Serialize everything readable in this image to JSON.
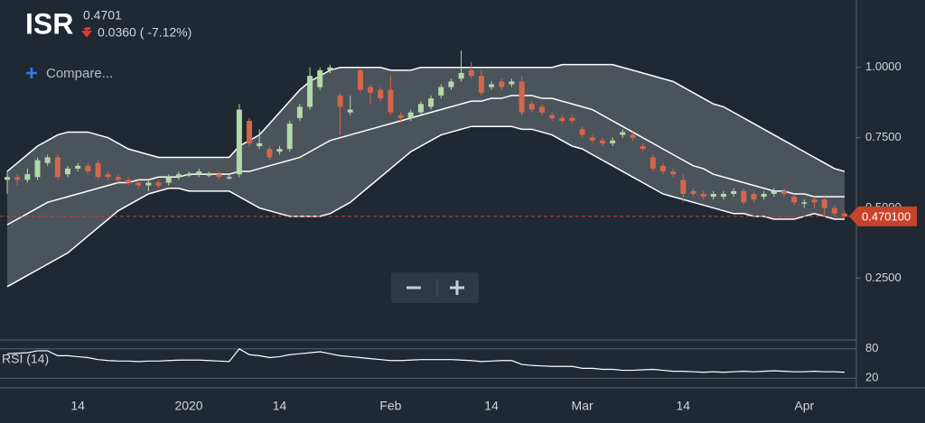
{
  "header": {
    "symbol": "ISR",
    "price": "0.4701",
    "change": "0.0360 ( -7.12%)",
    "compare": "Compare..."
  },
  "chart_data": [
    {
      "type": "candlestick",
      "categories": [
        null,
        null,
        null,
        null,
        null,
        null,
        null,
        "14",
        null,
        null,
        null,
        null,
        null,
        null,
        null,
        null,
        null,
        null,
        "2020",
        null,
        null,
        null,
        null,
        null,
        null,
        null,
        null,
        "14",
        null,
        null,
        null,
        null,
        null,
        null,
        null,
        null,
        null,
        null,
        "Feb",
        null,
        null,
        null,
        null,
        null,
        null,
        null,
        null,
        null,
        "14",
        null,
        null,
        null,
        null,
        null,
        null,
        null,
        null,
        "Mar",
        null,
        null,
        null,
        null,
        null,
        null,
        null,
        null,
        null,
        "14",
        null,
        null,
        null,
        null,
        null,
        null,
        null,
        null,
        null,
        null,
        null,
        "Apr",
        null,
        null,
        null,
        null
      ],
      "open": [
        0.6,
        0.61,
        0.6,
        0.61,
        0.66,
        0.68,
        0.62,
        0.64,
        0.65,
        0.66,
        0.62,
        0.61,
        0.6,
        0.59,
        0.58,
        0.59,
        0.59,
        0.61,
        0.62,
        0.62,
        0.62,
        0.62,
        0.61,
        0.62,
        0.81,
        0.72,
        0.71,
        0.7,
        0.71,
        0.82,
        0.86,
        0.93,
        0.99,
        0.9,
        0.84,
        0.99,
        0.93,
        0.92,
        0.92,
        0.83,
        0.82,
        0.84,
        0.86,
        0.9,
        0.93,
        0.96,
        0.99,
        0.97,
        0.93,
        0.95,
        0.94,
        0.95,
        0.87,
        0.86,
        0.83,
        0.82,
        0.82,
        0.78,
        0.75,
        0.74,
        0.73,
        0.76,
        0.76,
        0.72,
        0.68,
        0.65,
        0.63,
        0.6,
        0.56,
        0.55,
        0.54,
        0.54,
        0.55,
        0.56,
        0.55,
        0.54,
        0.55,
        0.56,
        0.54,
        0.52,
        0.53,
        0.53,
        0.5,
        0.48
      ],
      "high": [
        0.63,
        0.62,
        0.64,
        0.68,
        0.69,
        0.69,
        0.65,
        0.66,
        0.66,
        0.67,
        0.63,
        0.62,
        0.61,
        0.6,
        0.6,
        0.6,
        0.62,
        0.63,
        0.63,
        0.64,
        0.63,
        0.63,
        0.62,
        0.87,
        0.82,
        0.78,
        0.72,
        0.72,
        0.81,
        0.87,
        1.0,
        1.0,
        1.01,
        0.91,
        0.9,
        1.0,
        0.94,
        0.93,
        0.97,
        0.84,
        0.85,
        0.88,
        0.9,
        0.94,
        0.96,
        1.06,
        1.02,
        0.99,
        0.95,
        0.96,
        0.96,
        0.97,
        0.88,
        0.87,
        0.84,
        0.83,
        0.83,
        0.79,
        0.76,
        0.75,
        0.75,
        0.78,
        0.77,
        0.73,
        0.69,
        0.66,
        0.64,
        0.62,
        0.57,
        0.56,
        0.56,
        0.56,
        0.57,
        0.57,
        0.56,
        0.56,
        0.57,
        0.57,
        0.55,
        0.53,
        0.54,
        0.54,
        0.51,
        0.49
      ],
      "low": [
        0.55,
        0.58,
        0.59,
        0.6,
        0.65,
        0.6,
        0.61,
        0.63,
        0.62,
        0.6,
        0.6,
        0.59,
        0.58,
        0.57,
        0.56,
        0.57,
        0.58,
        0.6,
        0.61,
        0.61,
        0.61,
        0.6,
        0.6,
        0.61,
        0.72,
        0.71,
        0.67,
        0.69,
        0.7,
        0.81,
        0.85,
        0.92,
        0.98,
        0.76,
        0.83,
        0.91,
        0.87,
        0.88,
        0.83,
        0.81,
        0.81,
        0.83,
        0.85,
        0.89,
        0.92,
        0.95,
        0.96,
        0.9,
        0.92,
        0.92,
        0.93,
        0.83,
        0.84,
        0.83,
        0.81,
        0.8,
        0.8,
        0.75,
        0.73,
        0.72,
        0.72,
        0.75,
        0.74,
        0.7,
        0.63,
        0.62,
        0.61,
        0.52,
        0.54,
        0.53,
        0.53,
        0.53,
        0.54,
        0.51,
        0.52,
        0.53,
        0.54,
        0.54,
        0.51,
        0.5,
        0.5,
        0.47,
        0.47,
        0.46
      ],
      "close": [
        0.61,
        0.6,
        0.62,
        0.67,
        0.68,
        0.61,
        0.64,
        0.65,
        0.63,
        0.61,
        0.61,
        0.6,
        0.59,
        0.58,
        0.59,
        0.58,
        0.61,
        0.62,
        0.62,
        0.63,
        0.62,
        0.61,
        0.61,
        0.85,
        0.73,
        0.73,
        0.68,
        0.71,
        0.8,
        0.86,
        0.97,
        0.99,
        1.0,
        0.86,
        0.85,
        0.92,
        0.91,
        0.89,
        0.84,
        0.82,
        0.84,
        0.87,
        0.89,
        0.93,
        0.95,
        0.98,
        0.97,
        0.91,
        0.94,
        0.93,
        0.95,
        0.84,
        0.85,
        0.84,
        0.82,
        0.81,
        0.81,
        0.76,
        0.74,
        0.73,
        0.74,
        0.77,
        0.75,
        0.71,
        0.64,
        0.63,
        0.62,
        0.55,
        0.55,
        0.54,
        0.55,
        0.55,
        0.56,
        0.52,
        0.53,
        0.55,
        0.56,
        0.55,
        0.52,
        0.52,
        0.52,
        0.5,
        0.48,
        0.47
      ],
      "up_color": "#b3d9a9",
      "down_color": "#d4664c",
      "bands": {
        "upper": [
          0.63,
          0.66,
          0.69,
          0.72,
          0.74,
          0.76,
          0.77,
          0.77,
          0.77,
          0.76,
          0.75,
          0.73,
          0.71,
          0.7,
          0.69,
          0.68,
          0.68,
          0.68,
          0.68,
          0.68,
          0.68,
          0.68,
          0.68,
          0.72,
          0.74,
          0.76,
          0.8,
          0.84,
          0.88,
          0.92,
          0.95,
          0.97,
          0.99,
          1.0,
          1.0,
          1.0,
          1.0,
          1.0,
          0.99,
          0.99,
          0.99,
          1.0,
          1.0,
          1.0,
          1.0,
          1.0,
          1.0,
          1.0,
          1.0,
          1.0,
          1.0,
          1.0,
          1.0,
          1.0,
          1.0,
          1.01,
          1.01,
          1.01,
          1.01,
          1.01,
          1.01,
          1.0,
          0.99,
          0.98,
          0.97,
          0.96,
          0.95,
          0.93,
          0.91,
          0.89,
          0.87,
          0.86,
          0.84,
          0.82,
          0.8,
          0.78,
          0.76,
          0.74,
          0.72,
          0.7,
          0.68,
          0.66,
          0.64,
          0.63
        ],
        "middle": [
          0.44,
          0.46,
          0.48,
          0.5,
          0.52,
          0.53,
          0.54,
          0.55,
          0.56,
          0.57,
          0.58,
          0.59,
          0.59,
          0.6,
          0.6,
          0.61,
          0.61,
          0.61,
          0.62,
          0.62,
          0.62,
          0.62,
          0.62,
          0.63,
          0.63,
          0.64,
          0.65,
          0.66,
          0.67,
          0.68,
          0.7,
          0.72,
          0.74,
          0.75,
          0.76,
          0.77,
          0.78,
          0.79,
          0.8,
          0.81,
          0.82,
          0.83,
          0.84,
          0.85,
          0.86,
          0.87,
          0.88,
          0.88,
          0.89,
          0.89,
          0.9,
          0.9,
          0.9,
          0.89,
          0.89,
          0.88,
          0.87,
          0.86,
          0.85,
          0.83,
          0.81,
          0.79,
          0.77,
          0.75,
          0.73,
          0.71,
          0.69,
          0.67,
          0.65,
          0.64,
          0.62,
          0.61,
          0.6,
          0.59,
          0.58,
          0.57,
          0.56,
          0.56,
          0.55,
          0.55,
          0.54,
          0.54,
          0.54,
          0.54
        ],
        "lower": [
          0.22,
          0.24,
          0.26,
          0.28,
          0.3,
          0.32,
          0.34,
          0.37,
          0.4,
          0.43,
          0.46,
          0.49,
          0.51,
          0.53,
          0.55,
          0.56,
          0.57,
          0.57,
          0.56,
          0.56,
          0.56,
          0.56,
          0.56,
          0.54,
          0.52,
          0.5,
          0.49,
          0.48,
          0.47,
          0.47,
          0.47,
          0.47,
          0.48,
          0.5,
          0.52,
          0.55,
          0.58,
          0.61,
          0.64,
          0.67,
          0.7,
          0.72,
          0.74,
          0.76,
          0.77,
          0.78,
          0.79,
          0.79,
          0.79,
          0.79,
          0.79,
          0.78,
          0.78,
          0.77,
          0.76,
          0.74,
          0.72,
          0.71,
          0.69,
          0.67,
          0.65,
          0.63,
          0.61,
          0.59,
          0.57,
          0.55,
          0.54,
          0.53,
          0.52,
          0.51,
          0.5,
          0.49,
          0.48,
          0.48,
          0.47,
          0.47,
          0.46,
          0.46,
          0.46,
          0.47,
          0.48,
          0.47,
          0.46,
          0.46
        ],
        "color": "#ffffff"
      },
      "last_price": {
        "value": 0.4701,
        "label": "0.470100"
      },
      "last_price_color": "#c8432b",
      "ylim": [
        0.03,
        1.24
      ],
      "yticks": [
        {
          "value": 0.25,
          "label": "0.2500"
        },
        {
          "value": 0.5,
          "label": "0.5000"
        },
        {
          "value": 0.75,
          "label": "0.7500"
        },
        {
          "value": 1,
          "label": "1.0000"
        }
      ]
    },
    {
      "type": "line",
      "title": "RSI (14)",
      "color": "#ffffff",
      "values": [
        70,
        71,
        72,
        76,
        76,
        66,
        66,
        64,
        62,
        58,
        56,
        55,
        55,
        54,
        55,
        55,
        56,
        57,
        57,
        57,
        56,
        55,
        54,
        80,
        68,
        66,
        62,
        64,
        68,
        70,
        72,
        74,
        70,
        66,
        64,
        62,
        60,
        58,
        56,
        56,
        57,
        58,
        58,
        58,
        58,
        57,
        56,
        54,
        55,
        56,
        56,
        48,
        46,
        45,
        44,
        44,
        44,
        40,
        40,
        38,
        38,
        36,
        36,
        37,
        38,
        36,
        34,
        34,
        33,
        32,
        33,
        32,
        33,
        34,
        33,
        34,
        35,
        34,
        33,
        33,
        34,
        33,
        33,
        32
      ],
      "ylim": [
        0,
        100
      ],
      "yticks": [
        20,
        80
      ]
    }
  ]
}
